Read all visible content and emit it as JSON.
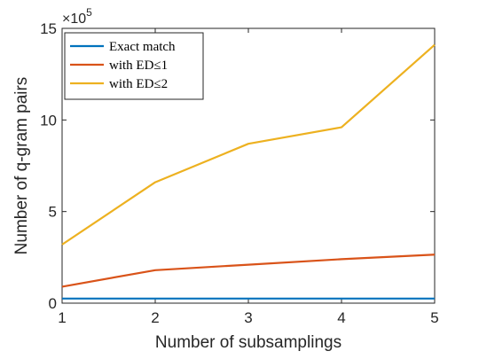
{
  "chart_data": {
    "type": "line",
    "title": "",
    "xlabel": "Number of subsamplings",
    "ylabel": "Number of q-gram pairs",
    "x": [
      1,
      2,
      3,
      4,
      5
    ],
    "xticks": [
      "1",
      "2",
      "3",
      "4",
      "5"
    ],
    "xlim": [
      1,
      5
    ],
    "ylim": [
      0,
      1500000
    ],
    "yticks": [
      0,
      500000,
      1000000,
      1500000
    ],
    "ytick_labels": [
      "0",
      "5",
      "10",
      "15"
    ],
    "y_exponent": {
      "base": "×10",
      "power": "5"
    },
    "grid": false,
    "legend_position": "top-left",
    "series": [
      {
        "name": "Exact match",
        "color": "#0072BD",
        "values": [
          25000,
          25000,
          25000,
          25000,
          25000
        ]
      },
      {
        "name": "with ED≤1",
        "color": "#D95319",
        "values": [
          90000,
          180000,
          210000,
          240000,
          265000
        ]
      },
      {
        "name": "with ED≤2",
        "color": "#EDB120",
        "values": [
          320000,
          660000,
          870000,
          960000,
          1410000
        ]
      }
    ]
  }
}
